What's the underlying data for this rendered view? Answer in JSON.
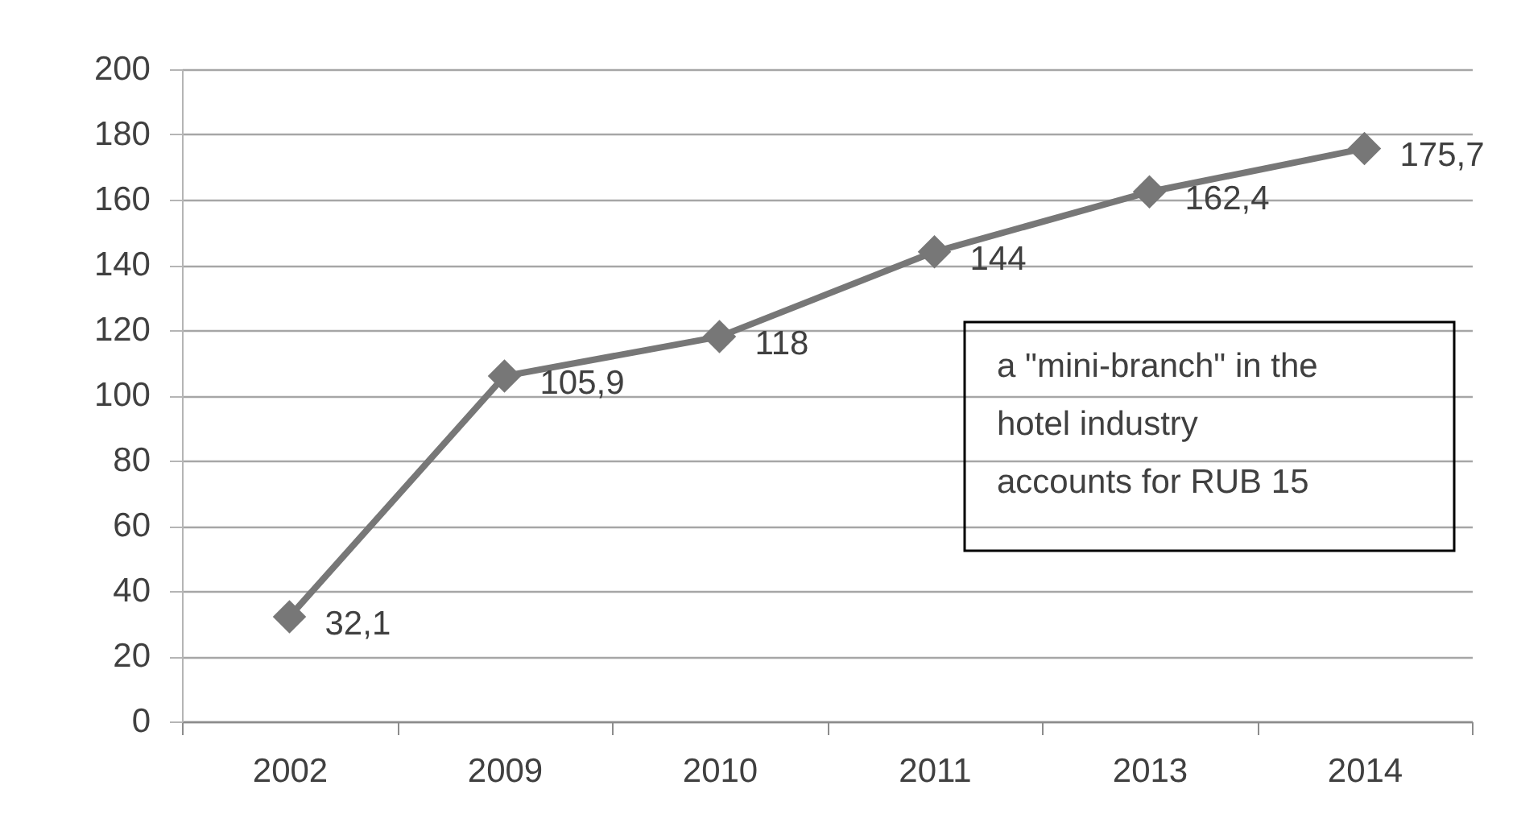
{
  "chart_data": {
    "type": "line",
    "categories": [
      "2002",
      "2009",
      "2010",
      "2011",
      "2013",
      "2014"
    ],
    "series": [
      {
        "color": "#777777",
        "values": [
          32.1,
          105.9,
          118,
          144,
          162.4,
          175.7
        ],
        "value_labels": [
          "32,1",
          "105,9",
          "118",
          "144",
          "162,4",
          "175,7"
        ]
      }
    ],
    "ylim": [
      0,
      200
    ],
    "yticks": [
      0,
      20,
      40,
      60,
      80,
      100,
      120,
      140,
      160,
      180,
      200
    ],
    "grid": "y",
    "marker": "diamond",
    "line_style": "solid",
    "annotations": [
      "a \"mini-branch\" in the hotel industry accounts for RUB 15"
    ]
  }
}
